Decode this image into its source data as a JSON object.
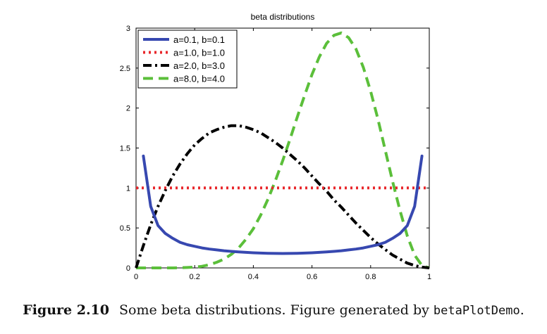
{
  "chart_data": {
    "type": "line",
    "title": "beta distributions",
    "xlabel": "",
    "ylabel": "",
    "xlim": [
      0,
      1
    ],
    "ylim": [
      0,
      3
    ],
    "xticks": [
      0,
      0.2,
      0.4,
      0.6,
      0.8,
      1
    ],
    "xtick_labels": [
      "0",
      "0.2",
      "0.4",
      "0.6",
      "0.8",
      "1"
    ],
    "yticks": [
      0,
      0.5,
      1,
      1.5,
      2,
      2.5,
      3
    ],
    "ytick_labels": [
      "0",
      "0.5",
      "1",
      "1.5",
      "2",
      "2.5",
      "3"
    ],
    "grid": false,
    "legend_position": "top-left",
    "x": [
      0.025,
      0.05,
      0.075,
      0.1,
      0.125,
      0.15,
      0.175,
      0.2,
      0.225,
      0.25,
      0.275,
      0.3,
      0.325,
      0.35,
      0.375,
      0.4,
      0.425,
      0.45,
      0.475,
      0.5,
      0.525,
      0.55,
      0.575,
      0.6,
      0.625,
      0.65,
      0.675,
      0.7,
      0.725,
      0.75,
      0.775,
      0.8,
      0.825,
      0.85,
      0.875,
      0.9,
      0.925,
      0.95,
      0.975
    ],
    "series": [
      {
        "name": "a=0.1, b=0.1",
        "color": "#3748b0",
        "dash": "solid",
        "start": 0.025,
        "end": 0.975,
        "values": [
          1.4,
          0.77,
          0.53,
          0.43,
          0.37,
          0.32,
          0.29,
          0.27,
          0.25,
          0.236,
          0.225,
          0.215,
          0.207,
          0.2,
          0.194,
          0.189,
          0.186,
          0.183,
          0.181,
          0.18,
          0.181,
          0.183,
          0.186,
          0.189,
          0.194,
          0.2,
          0.207,
          0.215,
          0.225,
          0.236,
          0.25,
          0.27,
          0.29,
          0.32,
          0.37,
          0.43,
          0.53,
          0.77,
          1.4
        ]
      },
      {
        "name": "a=1.0, b=1.0",
        "color": "#e8272b",
        "dash": "dotted",
        "start": 0,
        "end": 1,
        "values": [
          1,
          1,
          1,
          1,
          1,
          1,
          1,
          1,
          1,
          1,
          1,
          1,
          1,
          1,
          1,
          1,
          1,
          1,
          1,
          1,
          1,
          1,
          1,
          1,
          1,
          1,
          1,
          1,
          1,
          1,
          1,
          1,
          1,
          1,
          1,
          1,
          1,
          1,
          1
        ]
      },
      {
        "name": "a=2.0, b=3.0",
        "color": "#000000",
        "dash": "dashdot",
        "start": 0,
        "end": 1,
        "values": [
          0.28,
          0.54,
          0.77,
          0.97,
          1.15,
          1.3,
          1.43,
          1.54,
          1.62,
          1.69,
          1.73,
          1.76,
          1.78,
          1.78,
          1.76,
          1.73,
          1.69,
          1.63,
          1.57,
          1.5,
          1.42,
          1.34,
          1.25,
          1.15,
          1.05,
          0.96,
          0.85,
          0.76,
          0.66,
          0.56,
          0.47,
          0.38,
          0.3,
          0.23,
          0.16,
          0.11,
          0.06,
          0.03,
          0.01
        ]
      },
      {
        "name": "a=8.0, b=4.0",
        "color": "#5bbf3a",
        "dash": "dashed",
        "start": 0,
        "end": 1,
        "values": [
          0.0,
          0.0,
          0.0,
          0.0,
          0.0,
          0.002,
          0.005,
          0.01,
          0.02,
          0.04,
          0.07,
          0.11,
          0.17,
          0.25,
          0.36,
          0.49,
          0.66,
          0.86,
          1.09,
          1.34,
          1.61,
          1.89,
          2.16,
          2.42,
          2.64,
          2.81,
          2.91,
          2.94,
          2.88,
          2.74,
          2.51,
          2.21,
          1.86,
          1.47,
          1.08,
          0.72,
          0.4,
          0.16,
          0.03
        ]
      }
    ]
  },
  "caption": {
    "label": "Figure 2.10",
    "text": "Some beta distributions. Figure generated by ",
    "code": "betaPlotDemo",
    "end": "."
  }
}
